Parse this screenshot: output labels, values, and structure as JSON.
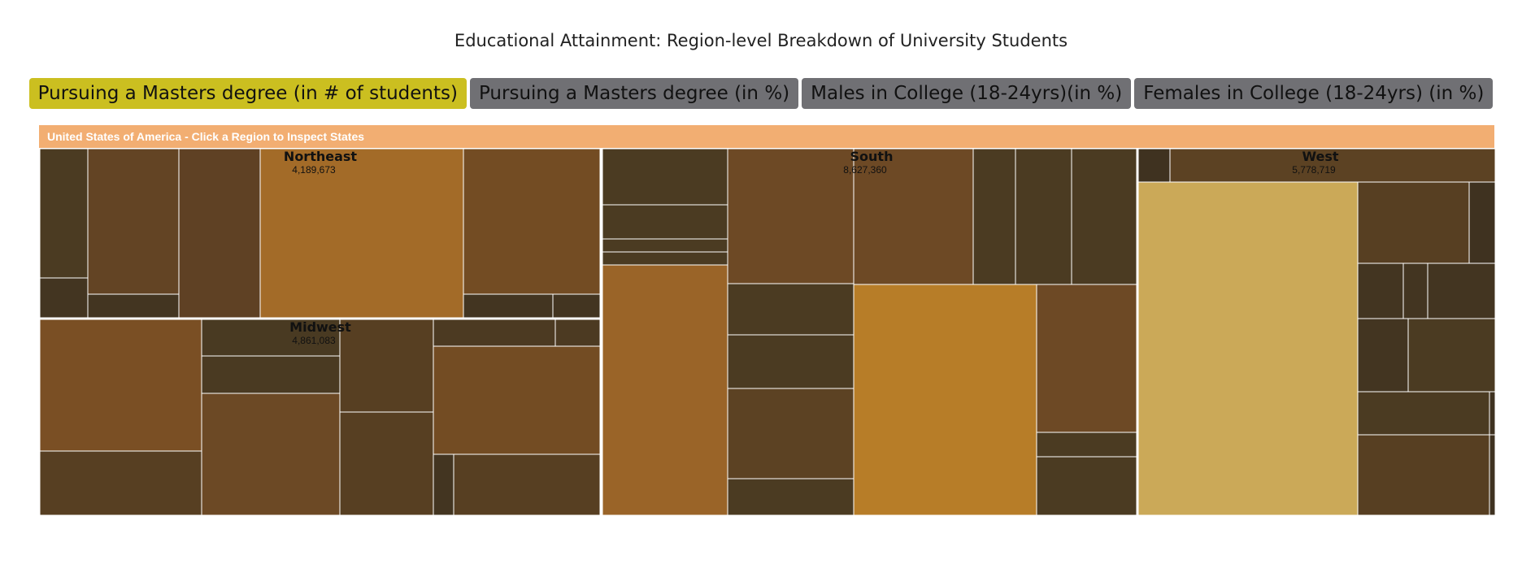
{
  "page": {
    "title": "Educational Attainment: Region-level Breakdown of University Students"
  },
  "buttons": [
    {
      "label": "Pursuing a Masters degree (in # of students)",
      "active": true
    },
    {
      "label": "Pursuing a Masters degree (in %)",
      "active": false
    },
    {
      "label": "Males in College (18-24yrs)(in %)",
      "active": false
    },
    {
      "label": "Females in College (18-24yrs) (in %)",
      "active": false
    }
  ],
  "breadcrumb": "United States of America - Click a Region to Inspect States",
  "chart_data": {
    "type": "treemap",
    "regions": [
      {
        "name": "Northeast",
        "value": "4,189,673"
      },
      {
        "name": "Midwest",
        "value": "4,861,083"
      },
      {
        "name": "South",
        "value": "8,627,360"
      },
      {
        "name": "West",
        "value": "5,778,719"
      }
    ],
    "colors": {
      "border": "#ffffff",
      "label": "#111111"
    }
  }
}
